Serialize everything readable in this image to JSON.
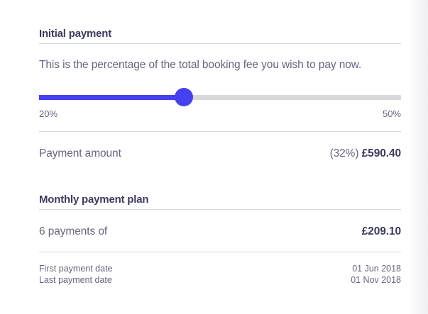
{
  "colors": {
    "accent": "#4641f0",
    "heading_text": "#3b3b5e",
    "body_text": "#66667e",
    "divider": "#d6d6dc",
    "slider_track": "#d9d9dc"
  },
  "initial_payment": {
    "title": "Initial payment",
    "description": "This is the percentage of the total booking fee you wish to pay now.",
    "slider": {
      "min": 20,
      "max": 50,
      "value": 32,
      "min_label": "20%",
      "max_label": "50%"
    },
    "payment_amount_label": "Payment amount",
    "payment_percent": "(32%)",
    "payment_amount": "£590.40"
  },
  "monthly_plan": {
    "title": "Monthly payment plan",
    "payments_count_label": "6 payments of",
    "payment_amount": "£209.10",
    "first_payment": {
      "label": "First payment date",
      "value": "01 Jun 2018"
    },
    "last_payment": {
      "label": "Last payment date",
      "value": "01 Nov 2018"
    }
  }
}
